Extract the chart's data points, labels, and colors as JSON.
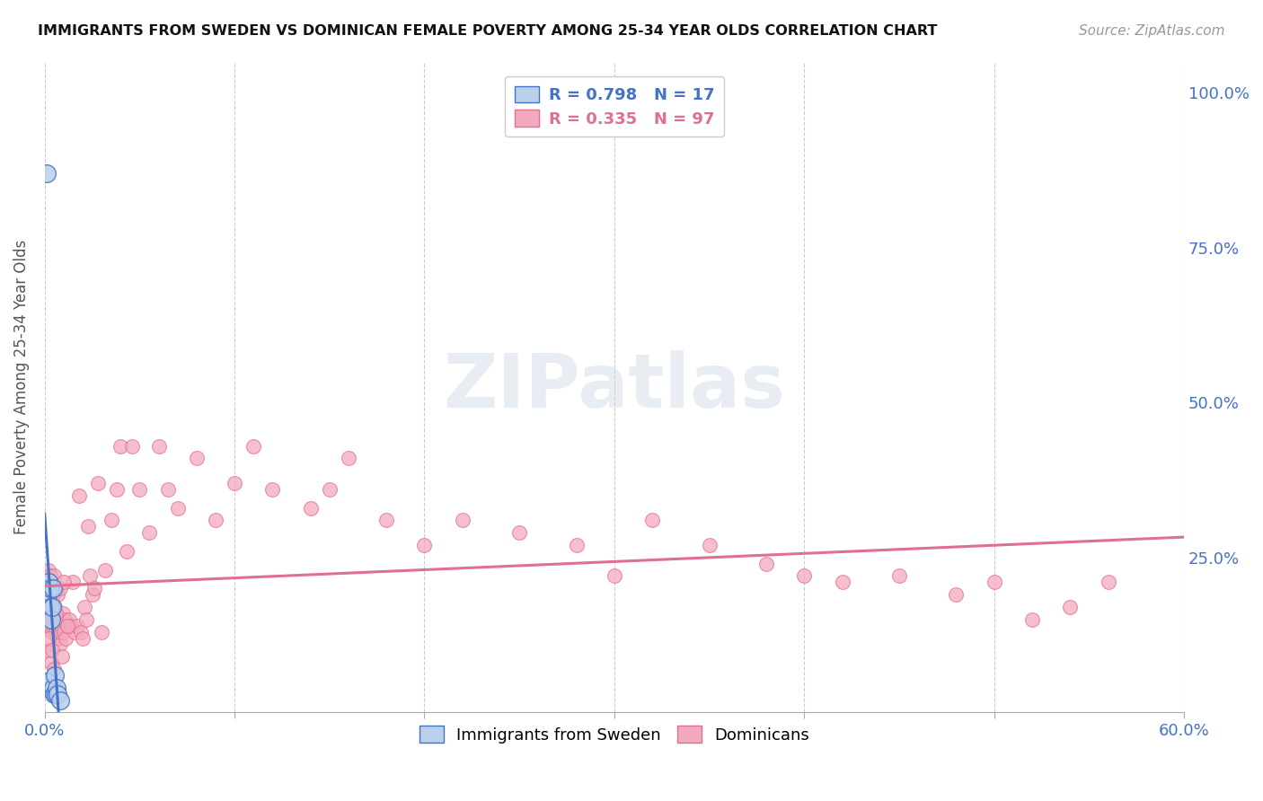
{
  "title": "IMMIGRANTS FROM SWEDEN VS DOMINICAN FEMALE POVERTY AMONG 25-34 YEAR OLDS CORRELATION CHART",
  "source": "Source: ZipAtlas.com",
  "ylabel": "Female Poverty Among 25-34 Year Olds",
  "legend_blue_r": "0.798",
  "legend_blue_n": "17",
  "legend_pink_r": "0.335",
  "legend_pink_n": "97",
  "legend_label_blue": "Immigrants from Sweden",
  "legend_label_pink": "Dominicans",
  "blue_fill": "#b8d0ea",
  "blue_edge": "#4472c4",
  "pink_fill": "#f4aabe",
  "pink_edge": "#e07090",
  "blue_line": "#4472c4",
  "pink_line": "#e07090",
  "xlim": [
    0.0,
    0.6
  ],
  "ylim": [
    0.0,
    1.05
  ],
  "right_yticklabels": [
    "",
    "25.0%",
    "50.0%",
    "75.0%",
    "100.0%"
  ],
  "right_yticks": [
    0.0,
    0.25,
    0.5,
    0.75,
    1.0
  ],
  "sweden_x": [
    0.0008,
    0.001,
    0.0012,
    0.0018,
    0.0022,
    0.003,
    0.0032,
    0.0035,
    0.004,
    0.0042,
    0.0045,
    0.005,
    0.0055,
    0.006,
    0.0065,
    0.007,
    0.008
  ],
  "sweden_y": [
    0.04,
    0.05,
    0.87,
    0.19,
    0.21,
    0.17,
    0.2,
    0.15,
    0.17,
    0.2,
    0.04,
    0.03,
    0.06,
    0.03,
    0.04,
    0.03,
    0.02
  ],
  "dominican_x": [
    0.0008,
    0.001,
    0.0012,
    0.0015,
    0.0018,
    0.002,
    0.0022,
    0.0025,
    0.0028,
    0.003,
    0.0032,
    0.0035,
    0.0038,
    0.004,
    0.0042,
    0.0045,
    0.0048,
    0.005,
    0.0055,
    0.0058,
    0.006,
    0.0065,
    0.007,
    0.0075,
    0.008,
    0.0085,
    0.009,
    0.0095,
    0.01,
    0.0105,
    0.011,
    0.012,
    0.013,
    0.014,
    0.015,
    0.016,
    0.017,
    0.018,
    0.019,
    0.02,
    0.021,
    0.022,
    0.023,
    0.024,
    0.025,
    0.026,
    0.028,
    0.03,
    0.032,
    0.035,
    0.038,
    0.04,
    0.043,
    0.046,
    0.05,
    0.055,
    0.06,
    0.065,
    0.07,
    0.08,
    0.09,
    0.1,
    0.11,
    0.12,
    0.14,
    0.15,
    0.16,
    0.18,
    0.2,
    0.22,
    0.25,
    0.28,
    0.3,
    0.32,
    0.35,
    0.38,
    0.4,
    0.42,
    0.45,
    0.48,
    0.5,
    0.52,
    0.54,
    0.56,
    0.0015,
    0.002,
    0.0025,
    0.003,
    0.0035,
    0.004,
    0.005,
    0.006,
    0.007,
    0.008,
    0.009,
    0.01,
    0.012
  ],
  "dominican_y": [
    0.19,
    0.21,
    0.16,
    0.15,
    0.17,
    0.23,
    0.14,
    0.17,
    0.2,
    0.22,
    0.14,
    0.15,
    0.18,
    0.13,
    0.15,
    0.19,
    0.22,
    0.14,
    0.17,
    0.2,
    0.13,
    0.15,
    0.12,
    0.14,
    0.11,
    0.13,
    0.14,
    0.16,
    0.13,
    0.15,
    0.12,
    0.14,
    0.15,
    0.14,
    0.21,
    0.13,
    0.14,
    0.35,
    0.13,
    0.12,
    0.17,
    0.15,
    0.3,
    0.22,
    0.19,
    0.2,
    0.37,
    0.13,
    0.23,
    0.31,
    0.36,
    0.43,
    0.26,
    0.43,
    0.36,
    0.29,
    0.43,
    0.36,
    0.33,
    0.41,
    0.31,
    0.37,
    0.43,
    0.36,
    0.33,
    0.36,
    0.41,
    0.31,
    0.27,
    0.31,
    0.29,
    0.27,
    0.22,
    0.31,
    0.27,
    0.24,
    0.22,
    0.21,
    0.22,
    0.19,
    0.21,
    0.15,
    0.17,
    0.21,
    0.1,
    0.12,
    0.16,
    0.18,
    0.08,
    0.1,
    0.07,
    0.16,
    0.19,
    0.2,
    0.09,
    0.21,
    0.14
  ]
}
